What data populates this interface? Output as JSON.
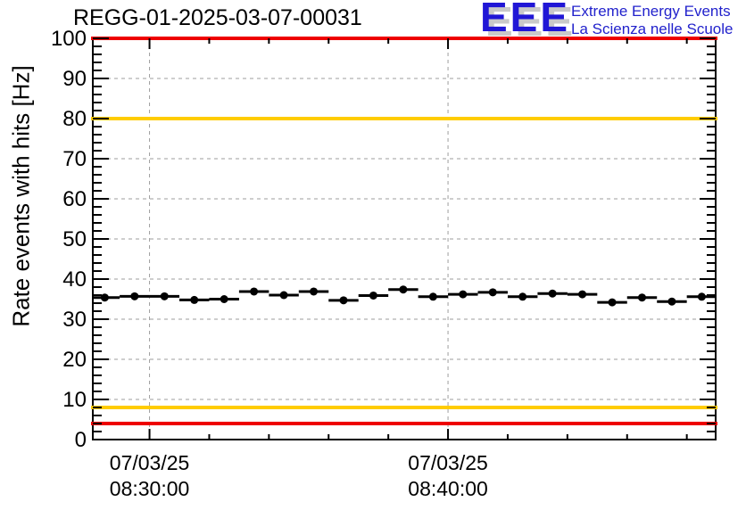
{
  "page": {
    "background": "#ffffff"
  },
  "header": {
    "title": "REGG-01-2025-03-07-00031",
    "logo": {
      "acronym": "EEE",
      "line1": "Extreme Energy Events",
      "line2": "La Scienza nelle Scuole",
      "color": "#2222cc"
    }
  },
  "chart_data": {
    "type": "scatter",
    "title": "REGG-01-2025-03-07-00031",
    "xlabel": "",
    "ylabel": "Rate events with hits [Hz]",
    "ylim": [
      0,
      100
    ],
    "y_major_tick_step": 10,
    "y_minor_tick_step": 2,
    "grid": true,
    "legend": "none",
    "x_axis": {
      "unit": "seconds relative to 08:30:00",
      "range_s": [
        -114,
        1138
      ],
      "major_ticks": [
        {
          "s": 0,
          "label_date": "07/03/25",
          "label_time": "08:30:00"
        },
        {
          "s": 600,
          "label_date": "07/03/25",
          "label_time": "08:40:00"
        }
      ],
      "minor_ticks_s": [
        120,
        240,
        360,
        480,
        720,
        840,
        960,
        1080
      ]
    },
    "threshold_lines": [
      {
        "value": 100,
        "color": "#ee0000"
      },
      {
        "value": 80,
        "color": "#ffcc00"
      },
      {
        "value": 8,
        "color": "#ffcc00"
      },
      {
        "value": 4,
        "color": "#ee0000"
      }
    ],
    "series": [
      {
        "name": "rate-events-with-hits",
        "marker": "filled-circle",
        "color": "#000000",
        "x_error_s": 30,
        "points": [
          {
            "time": "08:28:30",
            "s": -90,
            "rate": 35.4
          },
          {
            "time": "08:29:30",
            "s": -30,
            "rate": 35.7
          },
          {
            "time": "08:30:30",
            "s": 30,
            "rate": 35.7
          },
          {
            "time": "08:31:30",
            "s": 90,
            "rate": 34.8
          },
          {
            "time": "08:32:30",
            "s": 150,
            "rate": 35.0
          },
          {
            "time": "08:33:30",
            "s": 210,
            "rate": 36.9
          },
          {
            "time": "08:34:30",
            "s": 270,
            "rate": 36.0
          },
          {
            "time": "08:35:30",
            "s": 330,
            "rate": 36.9
          },
          {
            "time": "08:36:30",
            "s": 390,
            "rate": 34.7
          },
          {
            "time": "08:37:30",
            "s": 450,
            "rate": 35.9
          },
          {
            "time": "08:38:30",
            "s": 510,
            "rate": 37.4
          },
          {
            "time": "08:39:30",
            "s": 570,
            "rate": 35.6
          },
          {
            "time": "08:40:30",
            "s": 630,
            "rate": 36.2
          },
          {
            "time": "08:41:30",
            "s": 690,
            "rate": 36.7
          },
          {
            "time": "08:42:30",
            "s": 750,
            "rate": 35.6
          },
          {
            "time": "08:43:30",
            "s": 810,
            "rate": 36.4
          },
          {
            "time": "08:44:30",
            "s": 870,
            "rate": 36.2
          },
          {
            "time": "08:45:30",
            "s": 930,
            "rate": 34.2
          },
          {
            "time": "08:46:30",
            "s": 990,
            "rate": 35.4
          },
          {
            "time": "08:47:30",
            "s": 1050,
            "rate": 34.4
          },
          {
            "time": "08:48:30",
            "s": 1110,
            "rate": 35.6
          }
        ]
      }
    ],
    "colors": {
      "grid": "#9e9e9e",
      "axis": "#000000"
    }
  }
}
